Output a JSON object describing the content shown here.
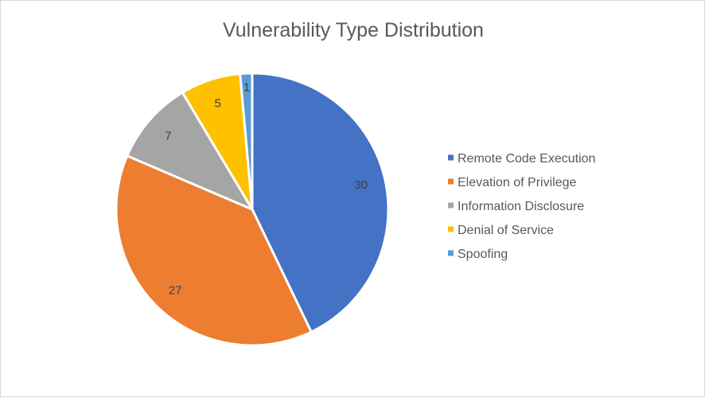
{
  "chart_data": {
    "type": "pie",
    "title": "Vulnerability Type Distribution",
    "categories": [
      "Remote Code Execution",
      "Elevation of Privilege",
      "Information Disclosure",
      "Denial of Service",
      "Spoofing"
    ],
    "values": [
      30,
      27,
      7,
      5,
      1
    ],
    "colors": [
      "#4472c4",
      "#ed7d31",
      "#a5a5a5",
      "#ffc000",
      "#5b9bd5"
    ],
    "legend": "right",
    "data_labels": true
  }
}
